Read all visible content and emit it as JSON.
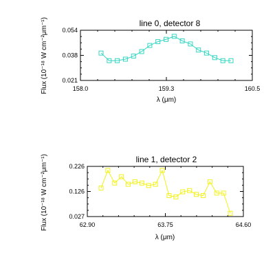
{
  "chart_data": [
    {
      "type": "line",
      "title": "line 0, detector 8",
      "xlabel": "λ (μm)",
      "ylabel": "Flux (10⁻¹⁸ W cm⁻²μm⁻¹)",
      "xlim": [
        158.0,
        160.5
      ],
      "ylim": [
        0.021,
        0.054
      ],
      "xticks": [
        "158.0",
        "159.3",
        "160.5"
      ],
      "yticks": [
        "0.021",
        "0.038",
        "0.054"
      ],
      "color": "#33d6c2",
      "marker": "square",
      "series": [
        {
          "x": [
            158.56,
            158.69,
            158.82,
            158.95,
            159.08,
            159.21,
            159.34,
            159.47,
            159.6,
            159.73,
            159.86,
            159.99,
            160.12,
            160.25,
            160.38,
            160.51,
            160.64
          ],
          "y": [
            0.039,
            0.034,
            0.034,
            0.035,
            0.037,
            0.04,
            0.044,
            0.0465,
            0.048,
            0.05,
            0.047,
            0.045,
            0.041,
            0.039,
            0.036,
            0.034,
            0.034
          ]
        }
      ],
      "yvals_shown_truncated": false
    },
    {
      "type": "line",
      "title": "line 1, detector 2",
      "xlabel": "λ (μm)",
      "ylabel": "Flux (10⁻¹⁸ W cm⁻²μm⁻¹)",
      "xlim": [
        62.9,
        64.6
      ],
      "ylim": [
        0.027,
        0.226
      ],
      "xticks": [
        "62.90",
        "63.75",
        "64.60"
      ],
      "yticks": [
        "0.027",
        "0.126",
        "0.226"
      ],
      "color": "#f2f21a",
      "marker": "square",
      "series": [
        {
          "x": [
            63.1,
            63.17,
            63.25,
            63.32,
            63.4,
            63.47,
            63.55,
            63.62,
            63.7,
            63.76,
            63.82,
            63.89,
            63.95,
            64.02,
            64.1,
            64.17,
            64.24,
            64.31,
            64.38,
            64.45
          ],
          "y": [
            0.14,
            0.21,
            0.16,
            0.185,
            0.155,
            0.165,
            0.16,
            0.15,
            0.155,
            0.21,
            0.11,
            0.105,
            0.125,
            0.13,
            0.115,
            0.11,
            0.165,
            0.12,
            0.12,
            0.04
          ]
        }
      ]
    }
  ]
}
